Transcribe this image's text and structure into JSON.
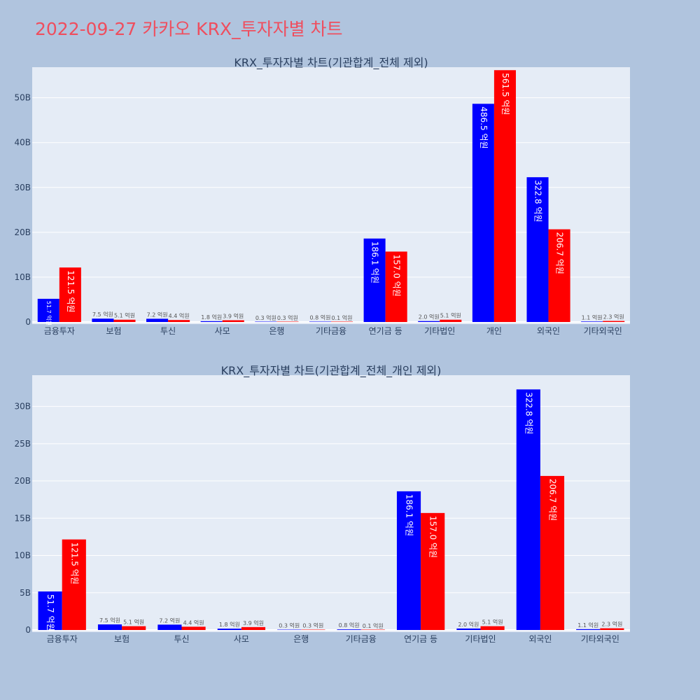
{
  "page": {
    "title": "2022-09-27 카카오 KRX_투자자별 차트"
  },
  "colors": {
    "background": "#b0c4de",
    "plot_bg": "#e5ecf6",
    "buy": "#0000ff",
    "sell": "#ff0000",
    "title": "#ef4e5e"
  },
  "chart_data": [
    {
      "type": "bar",
      "title": "KRX_투자자별 차트(기관합계_전체 제외)",
      "categories": [
        "금융투자",
        "보험",
        "투신",
        "사모",
        "은행",
        "기타금융",
        "연기금 등",
        "기타법인",
        "개인",
        "외국인",
        "기타외국인"
      ],
      "ylim": [
        0,
        56.5
      ],
      "yticks": [
        0,
        10,
        20,
        30,
        40,
        50
      ],
      "ytick_labels": [
        "0",
        "10B",
        "20B",
        "30B",
        "40B",
        "50B"
      ],
      "series": [
        {
          "color": "#0000ff",
          "values": [
            5.17,
            0.75,
            0.72,
            0.18,
            0.03,
            0.08,
            18.61,
            0.2,
            48.65,
            32.28,
            0.11
          ],
          "labels": [
            "51.7 억원",
            "7.5 억원",
            "7.2 억원",
            "1.8 억원",
            "0.3 억원",
            "0.8 억원",
            "186.1 억원",
            "2.0 억원",
            "486.5 억원",
            "322.8 억원",
            "1.1 억원"
          ]
        },
        {
          "color": "#ff0000",
          "values": [
            12.15,
            0.51,
            0.44,
            0.39,
            0.03,
            0.01,
            15.7,
            0.51,
            56.15,
            20.67,
            0.23
          ],
          "labels": [
            "121.5 억원",
            "5.1 억원",
            "4.4 억원",
            "3.9 억원",
            "0.3 억원",
            "0.1 억원",
            "157.0 억원",
            "5.1 억원",
            "561.5 억원",
            "206.7 억원",
            "2.3 억원"
          ]
        }
      ],
      "grid": true
    },
    {
      "type": "bar",
      "title": "KRX_투자자별 차트(기관합계_전체_개인 제외)",
      "categories": [
        "금융투자",
        "보험",
        "투신",
        "사모",
        "은행",
        "기타금융",
        "연기금 등",
        "기타법인",
        "외국인",
        "기타외국인"
      ],
      "ylim": [
        0,
        34
      ],
      "yticks": [
        0,
        5,
        10,
        15,
        20,
        25,
        30
      ],
      "ytick_labels": [
        "0",
        "5B",
        "10B",
        "15B",
        "20B",
        "25B",
        "30B"
      ],
      "series": [
        {
          "color": "#0000ff",
          "values": [
            5.17,
            0.75,
            0.72,
            0.18,
            0.03,
            0.08,
            18.61,
            0.2,
            32.28,
            0.11
          ],
          "labels": [
            "51.7 억원",
            "7.5 억원",
            "7.2 억원",
            "1.8 억원",
            "0.3 억원",
            "0.8 억원",
            "186.1 억원",
            "2.0 억원",
            "322.8 억원",
            "1.1 억원"
          ]
        },
        {
          "color": "#ff0000",
          "values": [
            12.15,
            0.51,
            0.44,
            0.39,
            0.03,
            0.01,
            15.7,
            0.51,
            20.67,
            0.23
          ],
          "labels": [
            "121.5 억원",
            "5.1 억원",
            "4.4 억원",
            "3.9 억원",
            "0.3 억원",
            "0.1 억원",
            "157.0 억원",
            "5.1 억원",
            "206.7 억원",
            "2.3 억원"
          ]
        }
      ],
      "grid": true
    }
  ]
}
